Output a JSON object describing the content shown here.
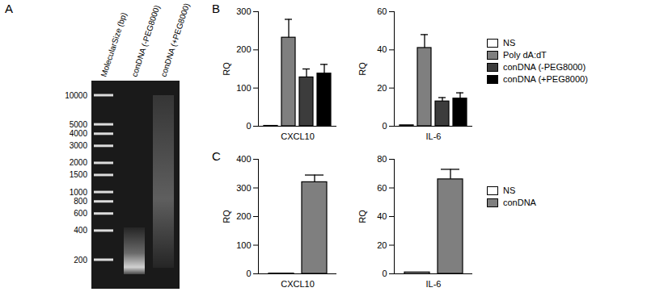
{
  "gel": {
    "panel": "A",
    "lanes": [
      "MolecularSize (bp)",
      "conDNA (-PEG8000)",
      "conDNA (+PEG8000)"
    ],
    "ladder_bp": [
      10000,
      5000,
      4000,
      3000,
      2000,
      1500,
      1000,
      800,
      600,
      400,
      200
    ]
  },
  "chart_data": [
    {
      "panel": "B",
      "type": "bar",
      "ylabel": "RQ",
      "categories": [
        "CXCL10"
      ],
      "ylim": [
        0,
        300
      ],
      "yticks": [
        0,
        100,
        200,
        300
      ],
      "series": [
        {
          "name": "NS",
          "color": "#ffffff",
          "values": [
            1
          ],
          "errors": [
            0
          ]
        },
        {
          "name": "Poly dA:dT",
          "color": "#7f7f7f",
          "values": [
            232
          ],
          "errors": [
            48
          ]
        },
        {
          "name": "conDNA (-PEG8000)",
          "color": "#3c3c3c",
          "values": [
            128
          ],
          "errors": [
            22
          ]
        },
        {
          "name": "conDNA (+PEG8000)",
          "color": "#000000",
          "values": [
            138
          ],
          "errors": [
            24
          ]
        }
      ]
    },
    {
      "type": "bar",
      "ylabel": "RQ",
      "categories": [
        "IL-6"
      ],
      "ylim": [
        0,
        60
      ],
      "yticks": [
        0,
        20,
        40,
        60
      ],
      "legend": "right",
      "series": [
        {
          "name": "NS",
          "color": "#ffffff",
          "values": [
            0.5
          ],
          "errors": [
            0
          ]
        },
        {
          "name": "Poly dA:dT",
          "color": "#7f7f7f",
          "values": [
            41
          ],
          "errors": [
            7
          ]
        },
        {
          "name": "conDNA (-PEG8000)",
          "color": "#3c3c3c",
          "values": [
            13
          ],
          "errors": [
            2
          ]
        },
        {
          "name": "conDNA (+PEG8000)",
          "color": "#000000",
          "values": [
            14.5
          ],
          "errors": [
            3
          ]
        }
      ]
    },
    {
      "panel": "C",
      "type": "bar",
      "ylabel": "RQ",
      "categories": [
        "CXCL10"
      ],
      "ylim": [
        0,
        400
      ],
      "yticks": [
        0,
        100,
        200,
        300,
        400
      ],
      "series": [
        {
          "name": "NS",
          "color": "#ffffff",
          "values": [
            1
          ],
          "errors": [
            0
          ]
        },
        {
          "name": "conDNA",
          "color": "#7f7f7f",
          "values": [
            320
          ],
          "errors": [
            25
          ]
        }
      ]
    },
    {
      "type": "bar",
      "ylabel": "RQ",
      "categories": [
        "IL-6"
      ],
      "ylim": [
        0,
        80
      ],
      "yticks": [
        0,
        20,
        40,
        60,
        80
      ],
      "legend": "right",
      "series": [
        {
          "name": "NS",
          "color": "#ffffff",
          "values": [
            1
          ],
          "errors": [
            0
          ]
        },
        {
          "name": "conDNA",
          "color": "#7f7f7f",
          "values": [
            66
          ],
          "errors": [
            7
          ]
        }
      ]
    }
  ]
}
